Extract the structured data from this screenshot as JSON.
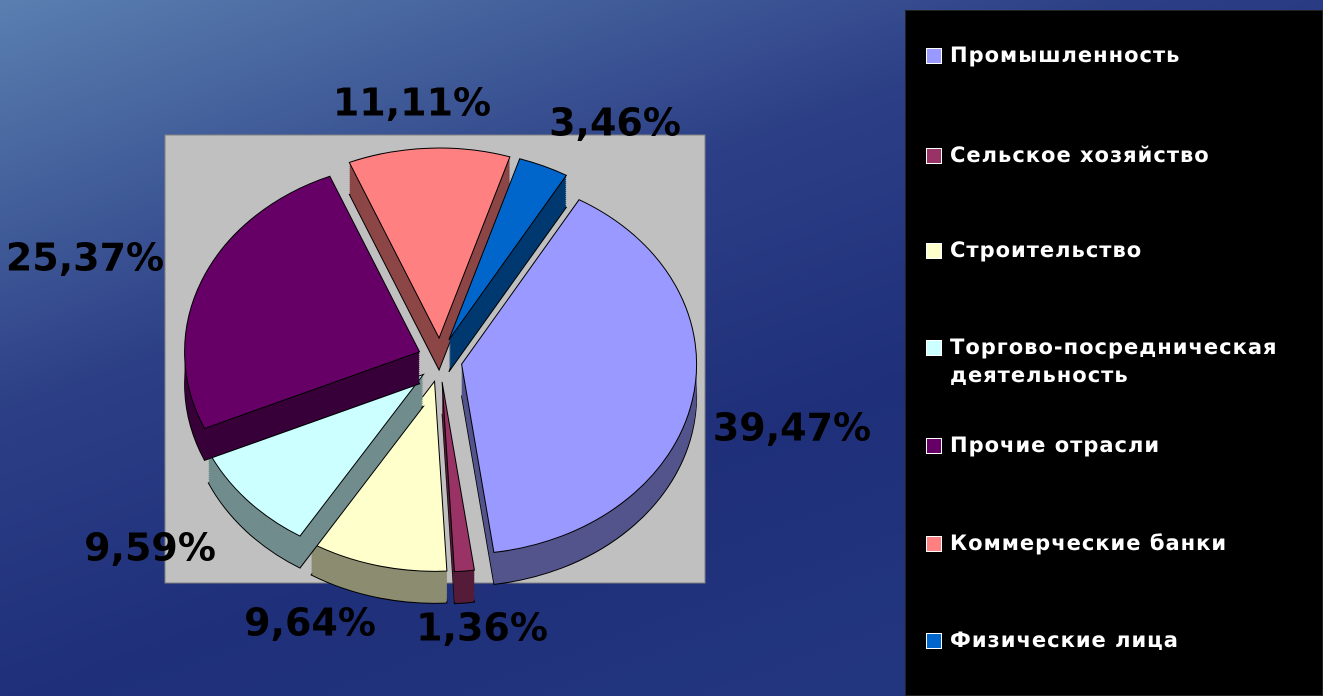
{
  "chart_data": {
    "type": "pie",
    "categories": [
      "Промышленность",
      "Сельское хозяйство",
      "Строительство",
      "Торгово-посредническая деятельность",
      "Прочие отрасли",
      "Коммерческие банки",
      "Физические лица"
    ],
    "values": [
      39.47,
      1.36,
      9.64,
      9.59,
      25.37,
      11.11,
      3.46
    ],
    "value_labels": [
      "39,47%",
      "1,36%",
      "9,64%",
      "9,59%",
      "25,37%",
      "11,11%",
      "3,46%"
    ],
    "colors": [
      "#9999ff",
      "#993366",
      "#ffffcc",
      "#ccffff",
      "#660066",
      "#ff8080",
      "#0066cc"
    ],
    "legend": "right"
  }
}
